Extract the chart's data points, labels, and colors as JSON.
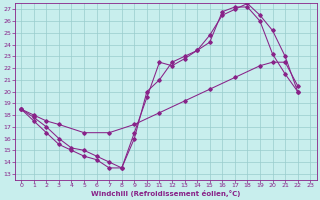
{
  "xlabel": "Windchill (Refroidissement éolien,°C)",
  "bg_color": "#c8eeed",
  "grid_color": "#99cccc",
  "line_color": "#882288",
  "xlim": [
    -0.5,
    23.5
  ],
  "ylim": [
    12.5,
    27.5
  ],
  "xticks": [
    0,
    1,
    2,
    3,
    4,
    5,
    6,
    7,
    8,
    9,
    10,
    11,
    12,
    13,
    14,
    15,
    16,
    17,
    18,
    19,
    20,
    21,
    22,
    23
  ],
  "yticks": [
    13,
    14,
    15,
    16,
    17,
    18,
    19,
    20,
    21,
    22,
    23,
    24,
    25,
    26,
    27
  ],
  "line1_x": [
    0,
    1,
    2,
    3,
    4,
    5,
    6,
    7,
    8,
    9,
    10,
    11,
    12,
    13,
    14,
    15,
    16,
    17,
    18,
    19,
    20,
    21,
    22
  ],
  "line1_y": [
    18.5,
    17.5,
    16.5,
    15.5,
    15.0,
    14.5,
    14.2,
    13.5,
    13.5,
    16.0,
    20.0,
    21.0,
    22.5,
    23.0,
    23.5,
    24.2,
    26.8,
    27.2,
    27.2,
    26.0,
    23.2,
    21.5,
    20.0
  ],
  "line2_x": [
    0,
    1,
    2,
    3,
    4,
    5,
    6,
    7,
    8,
    9,
    10,
    11,
    12,
    13,
    14,
    15,
    16,
    17,
    18,
    19,
    20,
    21,
    22
  ],
  "line2_y": [
    18.5,
    17.8,
    17.0,
    16.0,
    15.2,
    15.0,
    14.5,
    14.0,
    13.5,
    16.5,
    19.5,
    22.5,
    22.2,
    22.8,
    23.5,
    24.8,
    26.5,
    27.0,
    27.5,
    26.5,
    25.2,
    23.0,
    20.0
  ],
  "line3_x": [
    0,
    1,
    2,
    3,
    5,
    7,
    9,
    11,
    13,
    15,
    17,
    19,
    20,
    21,
    22
  ],
  "line3_y": [
    18.5,
    18.0,
    17.5,
    17.2,
    16.5,
    16.5,
    17.2,
    18.2,
    19.2,
    20.2,
    21.2,
    22.2,
    22.5,
    22.5,
    20.5
  ]
}
